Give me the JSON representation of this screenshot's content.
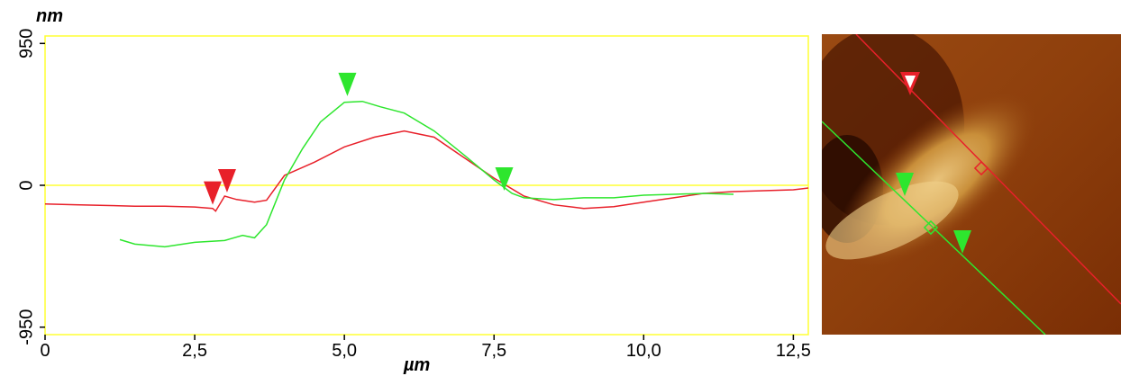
{
  "chart_data": {
    "type": "line",
    "y_unit": "nm",
    "x_unit": "µm",
    "xlim": [
      0,
      12.75
    ],
    "ylim": [
      -1000,
      1000
    ],
    "xticks": [
      0,
      {
        "value": 2.5,
        "label": "2,5"
      },
      {
        "value": 5.0,
        "label": "5,0"
      },
      {
        "value": 7.5,
        "label": "7,5"
      },
      {
        "value": 10.0,
        "label": "10,0"
      },
      {
        "value": 12.5,
        "label": "12,5"
      }
    ],
    "yticks": [
      -950,
      0,
      950
    ],
    "zero_line": true,
    "series": [
      {
        "color": "#e8202a",
        "x": [
          0,
          0.5,
          1.0,
          1.5,
          2.0,
          2.5,
          2.8,
          2.85,
          3.0,
          3.2,
          3.5,
          3.7,
          4.0,
          4.5,
          5.0,
          5.5,
          6.0,
          6.5,
          7.0,
          7.5,
          8.0,
          8.5,
          9.0,
          9.5,
          10.0,
          10.5,
          11.0,
          11.5,
          12.0,
          12.5,
          12.75
        ],
        "values": [
          -125,
          -130,
          -135,
          -140,
          -140,
          -145,
          -155,
          -173,
          -72,
          -95,
          -113,
          -100,
          66,
          155,
          257,
          322,
          364,
          322,
          185,
          48,
          -72,
          -131,
          -155,
          -143,
          -113,
          -84,
          -54,
          -42,
          -36,
          -30,
          -18
        ]
      },
      {
        "color": "#2ee62e",
        "x": [
          1.25,
          1.5,
          2.0,
          2.5,
          3.0,
          3.3,
          3.5,
          3.7,
          4.0,
          4.3,
          4.6,
          5.0,
          5.3,
          5.6,
          6.0,
          6.5,
          7.0,
          7.5,
          7.8,
          8.0,
          8.5,
          9.0,
          9.5,
          10.0,
          10.5,
          11.0,
          11.5
        ],
        "values": [
          -364,
          -394,
          -412,
          -382,
          -370,
          -335,
          -352,
          -263,
          36,
          245,
          424,
          556,
          562,
          526,
          484,
          364,
          203,
          36,
          -54,
          -84,
          -96,
          -84,
          -84,
          -66,
          -60,
          -54,
          -60
        ]
      }
    ],
    "cursors": [
      {
        "x": 2.8,
        "y": -130,
        "color": "#e8202a"
      },
      {
        "x": 3.04,
        "y": -48,
        "color": "#e8202a"
      },
      {
        "x": 5.05,
        "y": 597,
        "color": "#2ee62e"
      },
      {
        "x": 7.67,
        "y": -36,
        "color": "#2ee62e"
      }
    ]
  }
}
